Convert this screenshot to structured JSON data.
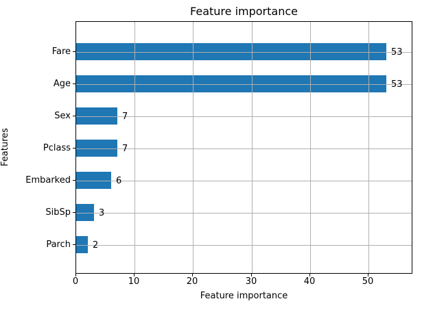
{
  "chart_data": {
    "type": "bar",
    "orientation": "horizontal",
    "title": "Feature importance",
    "xlabel": "Feature importance",
    "ylabel": "Features",
    "categories": [
      "Fare",
      "Age",
      "Sex",
      "Pclass",
      "Embarked",
      "SibSp",
      "Parch"
    ],
    "values": [
      53,
      53,
      7,
      7,
      6,
      3,
      2
    ],
    "value_labels": [
      "53",
      "53",
      "7",
      "7",
      "6",
      "3",
      "2"
    ],
    "x_ticks": [
      0,
      10,
      20,
      30,
      40,
      50
    ],
    "xlim": [
      0,
      57.6
    ],
    "grid": true,
    "grid_on_top": true,
    "legend": "none",
    "bar_color": "#1f77b4",
    "grid_color": "#b0b0b0",
    "spine_color": "#000000",
    "text_color": "#000000",
    "background_color": "#ffffff"
  }
}
